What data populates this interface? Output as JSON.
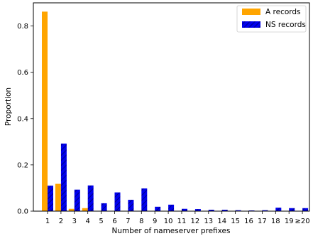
{
  "chart_data": {
    "type": "bar",
    "categories": [
      "1",
      "2",
      "3",
      "4",
      "5",
      "6",
      "7",
      "8",
      "9",
      "10",
      "11",
      "12",
      "13",
      "14",
      "15",
      "16",
      "17",
      "18",
      "19",
      "≥20"
    ],
    "series": [
      {
        "name": "A records",
        "color": "#ffa500",
        "pattern": "solid",
        "values": [
          0.862,
          0.118,
          0.01,
          0.013,
          0.001,
          0.001,
          0.001,
          0.001,
          0.001,
          0.001,
          0.0,
          0.0,
          0.0,
          0.0,
          0.0,
          0.0,
          0.0,
          0.0,
          0.0,
          0.0
        ]
      },
      {
        "name": "NS records",
        "color": "#0000ee",
        "pattern": "hatched",
        "values": [
          0.11,
          0.292,
          0.093,
          0.111,
          0.034,
          0.081,
          0.049,
          0.098,
          0.019,
          0.028,
          0.01,
          0.009,
          0.006,
          0.006,
          0.004,
          0.003,
          0.004,
          0.015,
          0.013,
          0.013
        ]
      }
    ],
    "xlabel": "Number of nameserver prefixes",
    "ylabel": "Proportion",
    "ylim": [
      0,
      0.9
    ],
    "yticks": [
      0.0,
      0.2,
      0.4,
      0.6,
      0.8
    ],
    "ytick_labels": [
      "0.0",
      "0.2",
      "0.4",
      "0.6",
      "0.8"
    ],
    "legend_position": "top-right",
    "grid": false
  }
}
